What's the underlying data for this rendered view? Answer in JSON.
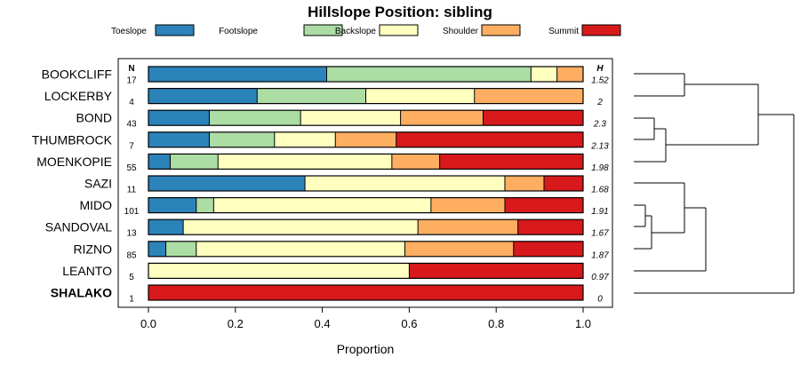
{
  "chart_data": {
    "type": "bar",
    "orientation": "horizontal",
    "stacked": true,
    "title": "Hillslope Position: sibling",
    "xlabel": "Proportion",
    "ylabel": "",
    "xlim": [
      0,
      1
    ],
    "x_ticks": [
      0.0,
      0.2,
      0.4,
      0.6,
      0.8,
      1.0
    ],
    "x_tick_labels": [
      "0.0",
      "0.2",
      "0.4",
      "0.6",
      "0.8",
      "1.0"
    ],
    "grid": false,
    "legend_position": "top",
    "n_header": "N",
    "h_header": "H",
    "highlighted_category": "SHALAKO",
    "categories": [
      "BOOKCLIFF",
      "LOCKERBY",
      "BOND",
      "THUMBROCK",
      "MOENKOPIE",
      "SAZI",
      "MIDO",
      "SANDOVAL",
      "RIZNO",
      "LEANTO",
      "SHALAKO"
    ],
    "n": [
      "17",
      "4",
      "43",
      "7",
      "55",
      "11",
      "101",
      "13",
      "85",
      "5",
      "1"
    ],
    "h": [
      "1.52",
      "2",
      "2.3",
      "2.13",
      "1.98",
      "1.68",
      "1.91",
      "1.67",
      "1.87",
      "0.97",
      "0"
    ],
    "series": [
      {
        "name": "Toeslope",
        "color": "#2b83ba",
        "values": [
          0.41,
          0.25,
          0.14,
          0.14,
          0.05,
          0.36,
          0.11,
          0.08,
          0.04,
          0.0,
          0.0
        ]
      },
      {
        "name": "Footslope",
        "color": "#abdda4",
        "values": [
          0.47,
          0.25,
          0.21,
          0.15,
          0.11,
          0.0,
          0.04,
          0.0,
          0.07,
          0.0,
          0.0
        ]
      },
      {
        "name": "Backslope",
        "color": "#ffffbf",
        "values": [
          0.06,
          0.25,
          0.23,
          0.14,
          0.4,
          0.46,
          0.5,
          0.54,
          0.48,
          0.6,
          0.0
        ]
      },
      {
        "name": "Shoulder",
        "color": "#fdae61",
        "values": [
          0.06,
          0.25,
          0.19,
          0.14,
          0.11,
          0.09,
          0.17,
          0.23,
          0.25,
          0.0,
          0.0
        ]
      },
      {
        "name": "Summit",
        "color": "#d7191c",
        "values": [
          0.0,
          0.0,
          0.23,
          0.43,
          0.33,
          0.09,
          0.18,
          0.15,
          0.16,
          0.4,
          1.0
        ]
      }
    ],
    "dendrogram": true
  }
}
